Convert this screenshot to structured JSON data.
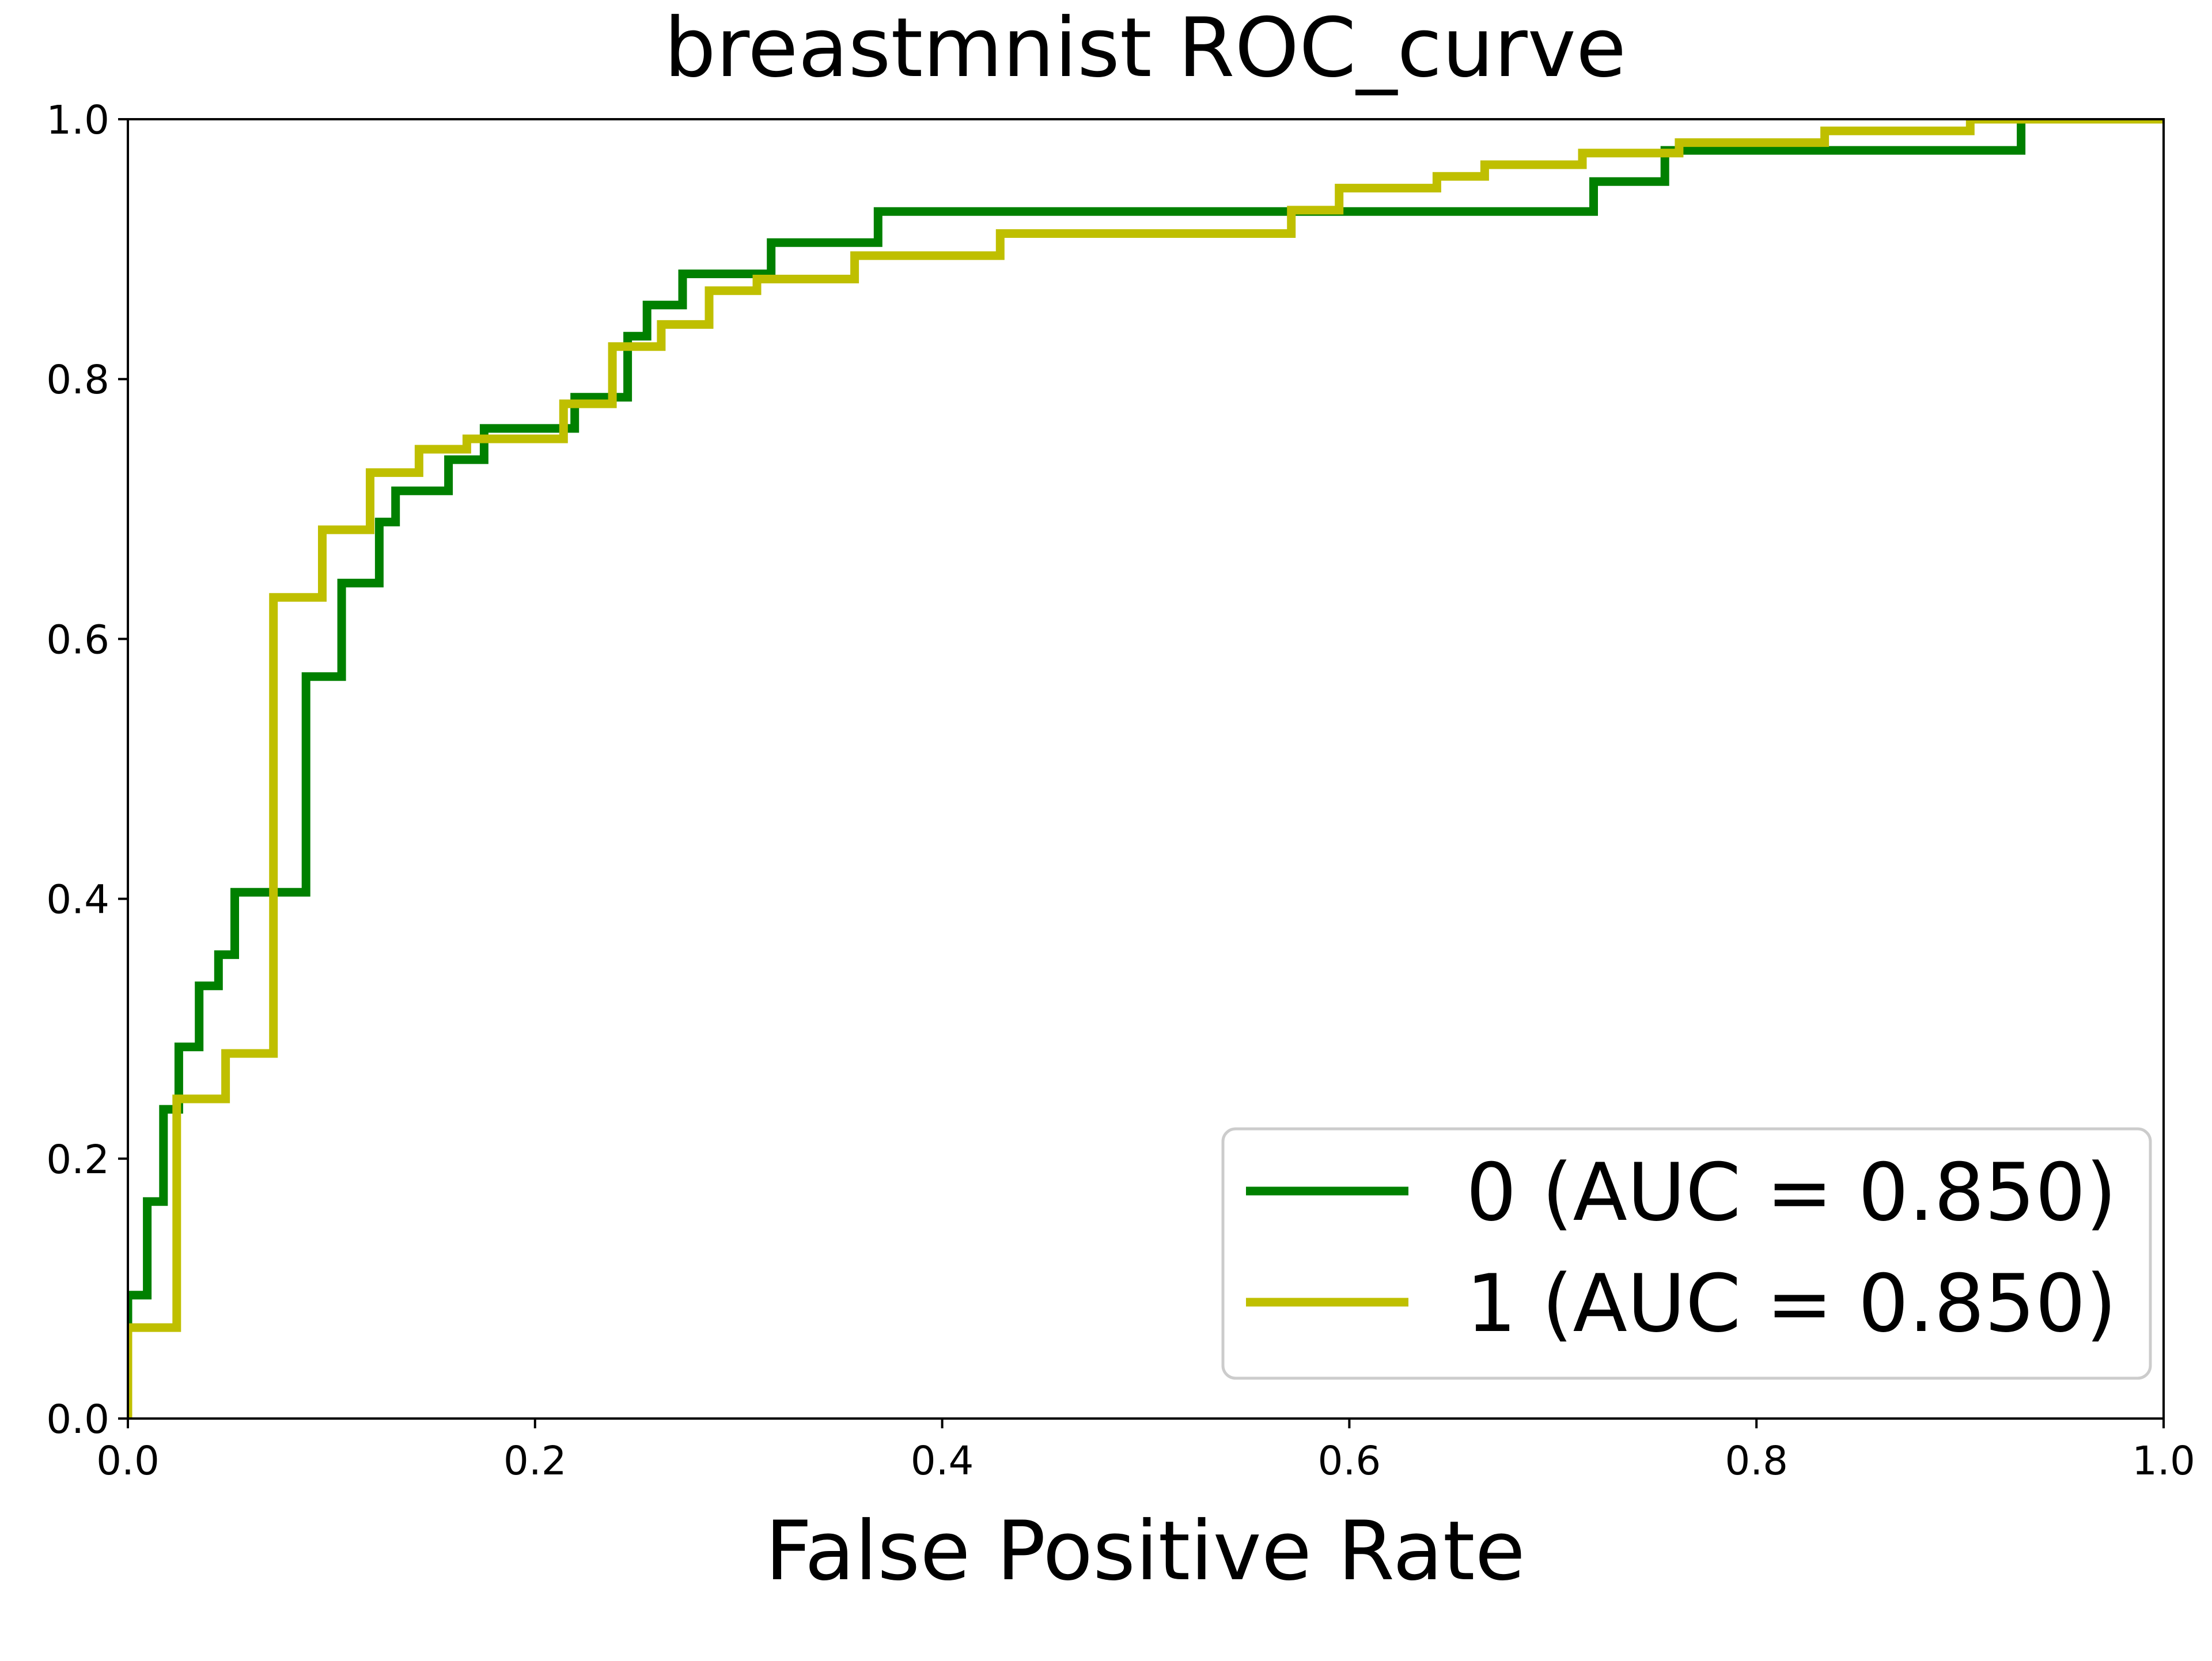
{
  "chart_data": {
    "type": "line",
    "title": "breastmnist ROC_curve",
    "xlabel": "False Positive Rate",
    "ylabel": "",
    "xlim": [
      0,
      1
    ],
    "ylim": [
      0,
      1
    ],
    "grid": false,
    "legend_position": "bottom-right",
    "x_ticks": [
      "0.0",
      "0.2",
      "0.4",
      "0.6",
      "0.8",
      "1.0"
    ],
    "y_ticks": [
      "0.0",
      "0.2",
      "0.4",
      "0.6",
      "0.8",
      "1.0"
    ],
    "series": [
      {
        "name": "0 (AUC = 0.850)",
        "color": "#008000",
        "x": [
          0,
          0,
          0.0095,
          0.0095,
          0.0175,
          0.0175,
          0.025,
          0.025,
          0.035,
          0.035,
          0.0445,
          0.0445,
          0.0525,
          0.0525,
          0.0875,
          0.0875,
          0.105,
          0.105,
          0.1235,
          0.1235,
          0.1315,
          0.1315,
          0.1575,
          0.1575,
          0.175,
          0.175,
          0.2195,
          0.2195,
          0.2455,
          0.2455,
          0.255,
          0.255,
          0.2725,
          0.2725,
          0.316,
          0.316,
          0.3685,
          0.3685,
          0.72,
          0.72,
          0.755,
          0.755,
          0.93,
          0.93,
          1
        ],
        "y": [
          0,
          0.095,
          0.095,
          0.167,
          0.167,
          0.238,
          0.238,
          0.286,
          0.286,
          0.333,
          0.333,
          0.357,
          0.357,
          0.405,
          0.405,
          0.571,
          0.571,
          0.643,
          0.643,
          0.69,
          0.69,
          0.714,
          0.714,
          0.738,
          0.738,
          0.762,
          0.762,
          0.786,
          0.786,
          0.833,
          0.833,
          0.857,
          0.857,
          0.881,
          0.881,
          0.905,
          0.905,
          0.929,
          0.929,
          0.952,
          0.952,
          0.976,
          0.976,
          1,
          1
        ]
      },
      {
        "name": "1 (AUC = 0.850)",
        "color": "#bfbf00",
        "x": [
          0,
          0,
          0.024,
          0.024,
          0.048,
          0.048,
          0.0715,
          0.0715,
          0.0955,
          0.0955,
          0.119,
          0.119,
          0.143,
          0.143,
          0.1665,
          0.1665,
          0.214,
          0.214,
          0.238,
          0.238,
          0.262,
          0.262,
          0.2855,
          0.2855,
          0.309,
          0.309,
          0.357,
          0.357,
          0.4285,
          0.4285,
          0.5715,
          0.5715,
          0.595,
          0.595,
          0.643,
          0.643,
          0.6665,
          0.6665,
          0.7145,
          0.7145,
          0.762,
          0.762,
          0.8335,
          0.8335,
          0.905,
          0.905,
          1
        ],
        "y": [
          0,
          0.07,
          0.07,
          0.246,
          0.246,
          0.281,
          0.281,
          0.632,
          0.632,
          0.684,
          0.684,
          0.728,
          0.728,
          0.746,
          0.746,
          0.754,
          0.754,
          0.781,
          0.781,
          0.825,
          0.825,
          0.842,
          0.842,
          0.868,
          0.868,
          0.877,
          0.877,
          0.895,
          0.895,
          0.912,
          0.912,
          0.93,
          0.93,
          0.947,
          0.947,
          0.956,
          0.956,
          0.965,
          0.965,
          0.974,
          0.974,
          0.982,
          0.982,
          0.991,
          0.991,
          1,
          1
        ]
      }
    ]
  }
}
